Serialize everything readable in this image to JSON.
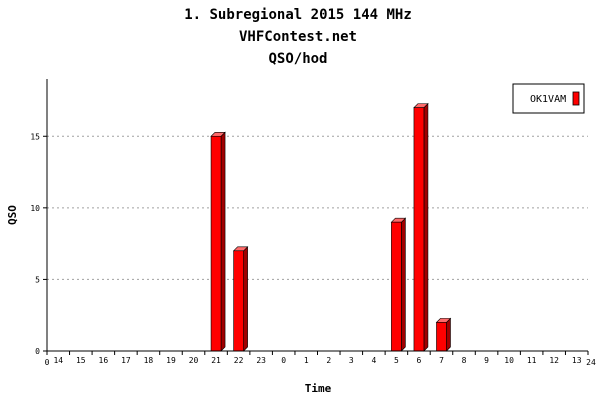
{
  "titles": [
    "1. Subregional 2015 144 MHz",
    "VHFContest.net",
    "QSO/hod"
  ],
  "chart_data": {
    "type": "bar",
    "title": "1. Subregional 2015 144 MHz",
    "subtitle": [
      "VHFContest.net",
      "QSO/hod"
    ],
    "xlabel": "Time",
    "ylabel": "QSO",
    "categories": [
      "14",
      "15",
      "16",
      "17",
      "18",
      "19",
      "20",
      "21",
      "22",
      "23",
      "0",
      "1",
      "2",
      "3",
      "4",
      "5",
      "6",
      "7",
      "8",
      "9",
      "10",
      "11",
      "12",
      "13"
    ],
    "x_edge_labels": [
      "0",
      "24"
    ],
    "series": [
      {
        "name": "OK1VAM",
        "color": "#ff0000",
        "values": [
          0,
          0,
          0,
          0,
          0,
          0,
          0,
          15,
          7,
          0,
          0,
          0,
          0,
          0,
          0,
          9,
          17,
          2,
          0,
          0,
          0,
          0,
          0,
          0
        ]
      }
    ],
    "ylim": [
      0,
      19
    ],
    "yticks": [
      0,
      5,
      10,
      15
    ],
    "grid": "horizontal dotted",
    "legend_position": "top-right"
  }
}
